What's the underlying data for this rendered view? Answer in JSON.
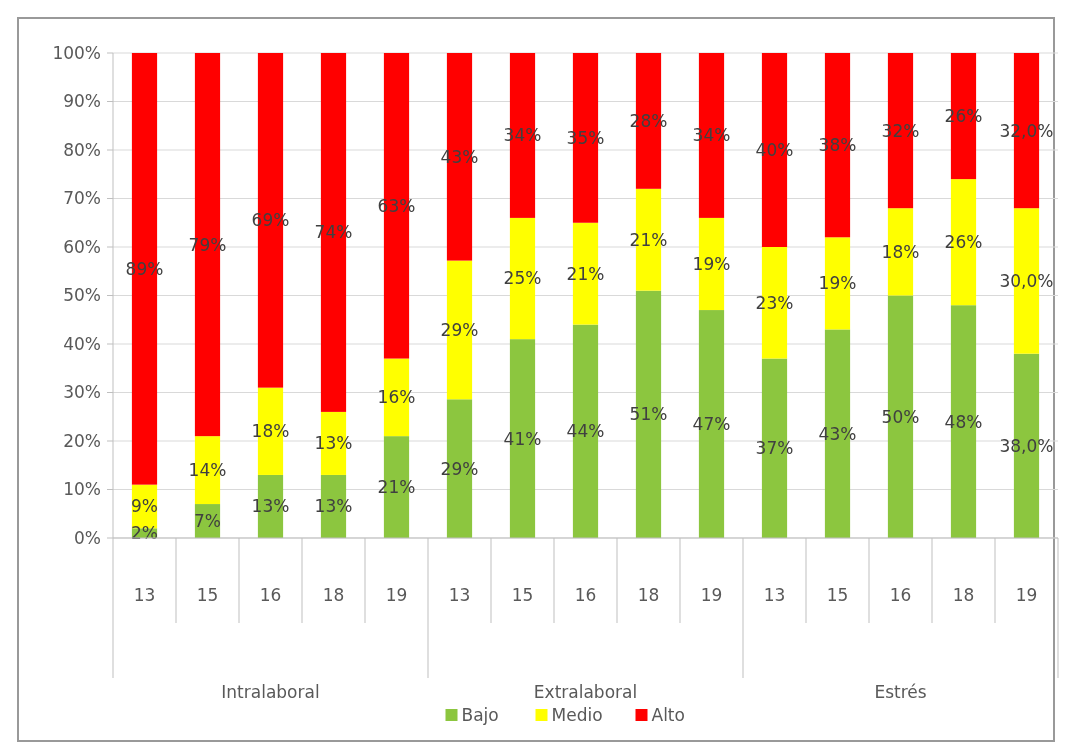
{
  "chart_data": {
    "type": "bar",
    "stacked": true,
    "categories": [
      "13",
      "15",
      "16",
      "18",
      "19",
      "13",
      "15",
      "16",
      "18",
      "19",
      "13",
      "15",
      "16",
      "18",
      "19"
    ],
    "series": [
      {
        "name": "Bajo",
        "color": "#8cc63f",
        "values": [
          2,
          7,
          13,
          13,
          21,
          28.6,
          41,
          44,
          51,
          47,
          37,
          43,
          50,
          48,
          38
        ],
        "value_labels": [
          "2%",
          "7%",
          "13%",
          "13%",
          "21%",
          "29%",
          "41%",
          "44%",
          "51%",
          "47%",
          "37%",
          "43%",
          "50%",
          "48%",
          "38,0%"
        ]
      },
      {
        "name": "Medio",
        "color": "#ffff00",
        "values": [
          9,
          14,
          18,
          13,
          16,
          28.6,
          25,
          21,
          21,
          19,
          23,
          19,
          18,
          26,
          30
        ],
        "value_labels": [
          "9%",
          "14%",
          "18%",
          "13%",
          "16%",
          "29%",
          "25%",
          "21%",
          "21%",
          "19%",
          "23%",
          "19%",
          "18%",
          "26%",
          "30,0%"
        ]
      },
      {
        "name": "Alto",
        "color": "#ff0000",
        "values": [
          89,
          79,
          69,
          74,
          63,
          42.8,
          34,
          35,
          28,
          34,
          40,
          38,
          32,
          26,
          32
        ],
        "value_labels": [
          "89%",
          "79%",
          "69%",
          "74%",
          "63%",
          "43%",
          "34%",
          "35%",
          "28%",
          "34%",
          "40%",
          "38%",
          "32%",
          "26%",
          "32,0%"
        ]
      }
    ],
    "annotations": [
      "Intralaboral",
      "Extralaboral",
      "Estrés"
    ],
    "ylim": [
      0,
      100
    ],
    "yticks": [
      {
        "value": 0,
        "label": "0%"
      },
      {
        "value": 10,
        "label": "10%"
      },
      {
        "value": 20,
        "label": "20%"
      },
      {
        "value": 30,
        "label": "30%"
      },
      {
        "value": 40,
        "label": "40%"
      },
      {
        "value": 50,
        "label": "50%"
      },
      {
        "value": 60,
        "label": "60%"
      },
      {
        "value": 70,
        "label": "70%"
      },
      {
        "value": 80,
        "label": "80%"
      },
      {
        "value": 90,
        "label": "90%"
      },
      {
        "value": 100,
        "label": "100%"
      }
    ],
    "grid": "y",
    "legend": "bottom"
  }
}
